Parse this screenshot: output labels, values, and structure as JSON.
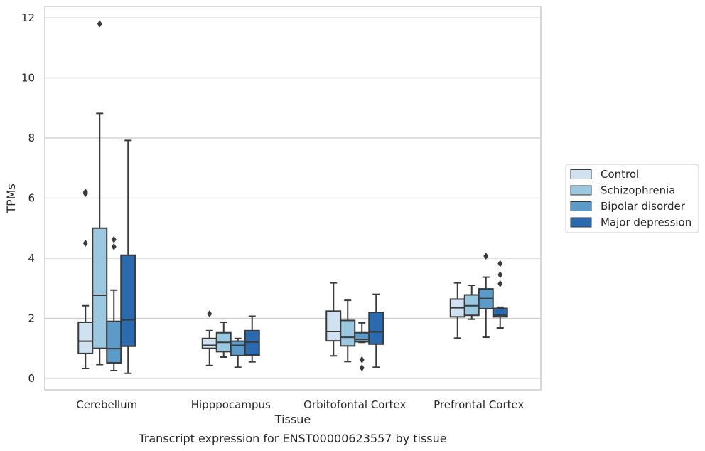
{
  "chart_data": {
    "type": "box",
    "caption": "Transcript expression for ENST00000623557 by tissue",
    "xlabel": "Tissue",
    "ylabel": "TPMs",
    "ylim": [
      -0.38,
      12.38
    ],
    "yticks": [
      0,
      2,
      4,
      6,
      8,
      10,
      12
    ],
    "grid": true,
    "legend_position": "right",
    "categories": [
      "Cerebellum",
      "Hipppocampus",
      "Orbitofontal Cortex",
      "Prefrontal Cortex"
    ],
    "series": [
      {
        "name": "Control",
        "color": "#d0e1f2",
        "boxes": [
          {
            "whislo": 0.33,
            "q1": 0.83,
            "med": 1.24,
            "q3": 1.87,
            "whishi": 2.42,
            "fliers": [
              4.5,
              6.15,
              6.2
            ]
          },
          {
            "whislo": 0.43,
            "q1": 1.0,
            "med": 1.1,
            "q3": 1.33,
            "whishi": 1.59,
            "fliers": [
              2.15
            ]
          },
          {
            "whislo": 0.75,
            "q1": 1.25,
            "med": 1.56,
            "q3": 2.24,
            "whishi": 3.18,
            "fliers": []
          },
          {
            "whislo": 1.34,
            "q1": 2.05,
            "med": 2.35,
            "q3": 2.64,
            "whishi": 3.18,
            "fliers": []
          }
        ]
      },
      {
        "name": "Schizophrenia",
        "color": "#9ac8e0",
        "boxes": [
          {
            "whislo": 0.46,
            "q1": 1.0,
            "med": 2.77,
            "q3": 5.0,
            "whishi": 8.82,
            "fliers": [
              11.8
            ]
          },
          {
            "whislo": 0.71,
            "q1": 0.89,
            "med": 1.2,
            "q3": 1.52,
            "whishi": 1.87,
            "fliers": []
          },
          {
            "whislo": 0.56,
            "q1": 1.08,
            "med": 1.37,
            "q3": 1.93,
            "whishi": 2.6,
            "fliers": []
          },
          {
            "whislo": 1.97,
            "q1": 2.1,
            "med": 2.42,
            "q3": 2.78,
            "whishi": 3.1,
            "fliers": []
          }
        ]
      },
      {
        "name": "Bipolar disorder",
        "color": "#5a9bc9",
        "boxes": [
          {
            "whislo": 0.26,
            "q1": 0.52,
            "med": 0.99,
            "q3": 1.9,
            "whishi": 2.94,
            "fliers": [
              4.38,
              4.62
            ]
          },
          {
            "whislo": 0.37,
            "q1": 0.76,
            "med": 1.1,
            "q3": 1.24,
            "whishi": 1.33,
            "fliers": []
          },
          {
            "whislo": 1.2,
            "q1": 1.22,
            "med": 1.3,
            "q3": 1.52,
            "whishi": 1.85,
            "fliers": [
              0.35,
              0.62
            ]
          },
          {
            "whislo": 1.37,
            "q1": 2.32,
            "med": 2.66,
            "q3": 2.98,
            "whishi": 3.37,
            "fliers": [
              4.07
            ]
          }
        ]
      },
      {
        "name": "Major depression",
        "color": "#2a6aae",
        "boxes": [
          {
            "whislo": 0.17,
            "q1": 1.07,
            "med": 1.95,
            "q3": 4.1,
            "whishi": 7.92,
            "fliers": []
          },
          {
            "whislo": 0.55,
            "q1": 0.78,
            "med": 1.21,
            "q3": 1.59,
            "whishi": 2.07,
            "fliers": []
          },
          {
            "whislo": 0.37,
            "q1": 1.14,
            "med": 1.55,
            "q3": 2.2,
            "whishi": 2.8,
            "fliers": []
          },
          {
            "whislo": 1.68,
            "q1": 2.05,
            "med": 2.1,
            "q3": 2.33,
            "whishi": 2.37,
            "fliers": [
              3.15,
              3.45,
              3.82
            ]
          }
        ]
      }
    ]
  }
}
